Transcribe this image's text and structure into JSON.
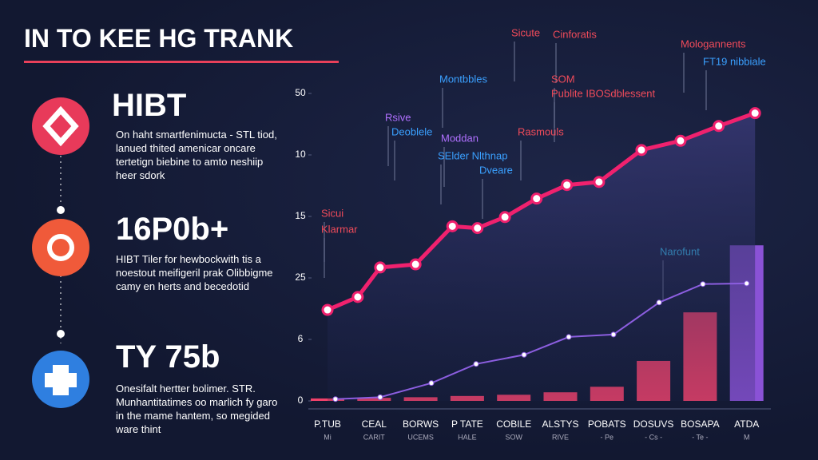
{
  "title": "IN TO KEE HG TRANK",
  "items": [
    {
      "heading": "HIBT",
      "text": "On haht smartfenimucta - STL tiod, lanued thited amenicar oncare tertetign biebine to amto neshiip heer sdork"
    },
    {
      "heading": "16P0b+",
      "text": "HIBT Tiler for hewbockwith tis a noestout meifigeril prak Olibbigme camy en herts and becedotid"
    },
    {
      "heading": "TY 75b",
      "text": "Onesifalt hertter bolimer. STR. Munhantitatimes oo marlich fy garo in the mame hantem, so megided ware thint"
    }
  ],
  "chart_data": {
    "type": "combo",
    "categories": [
      "P.TUB",
      "CEAL",
      "BORWS",
      "P TATE",
      "COBILE",
      "ALSTYS",
      "POBATS",
      "DOSUVS",
      "BOSAPA",
      "ATDA"
    ],
    "category_sublabels": [
      "Mi",
      "CARIT",
      "UCEMS",
      "HALE",
      "SOW",
      "RIVE",
      "- Pe",
      "- Cs -",
      "- Te -",
      "M"
    ],
    "ylim": [
      0,
      50
    ],
    "yticks": [
      0,
      {
        "value": 10,
        "label": "6"
      },
      {
        "value": 20,
        "label": "25"
      },
      {
        "value": 30,
        "label": "15"
      },
      {
        "value": 40,
        "label": "10"
      },
      {
        "value": 50,
        "label": "50"
      }
    ],
    "bars": {
      "color": "#f0416a",
      "last_color": "#8a52d6",
      "values": [
        0.4,
        0.5,
        0.6,
        0.8,
        1.0,
        1.4,
        2.3,
        6.5,
        14.4,
        25.3
      ]
    },
    "series": [
      {
        "color": "#f0216e",
        "x": [
          0,
          0.65,
          1.13,
          1.89,
          2.68,
          3.22,
          3.81,
          4.49,
          5.14,
          5.83,
          6.74,
          7.58,
          8.4,
          9.18
        ],
        "values": [
          14.8,
          16.9,
          21.7,
          22.2,
          28.4,
          28.1,
          29.9,
          32.9,
          35.1,
          35.6,
          40.8,
          42.3,
          44.7,
          46.8
        ]
      },
      {
        "color": "#8c5ee0",
        "x": [
          0.17,
          1.13,
          2.23,
          3.19,
          4.22,
          5.18,
          6.14,
          7.12,
          8.06,
          9.0
        ],
        "values": [
          0.3,
          0.6,
          2.9,
          6.0,
          7.5,
          10.4,
          10.8,
          16.0,
          19.0,
          19.1
        ]
      }
    ],
    "annotations": [
      {
        "text": "Sicute",
        "color": "#f04b5a"
      },
      {
        "text": "Cinforatis",
        "color": "#f04b5a"
      },
      {
        "text": "Mologannents",
        "color": "#f04b5a"
      },
      {
        "text": "FT19 nibbiale",
        "color": "#3aa0ff"
      },
      {
        "text": "Montbbles",
        "color": "#3aa0ff"
      },
      {
        "text": "SOM",
        "color": "#f04b5a"
      },
      {
        "text": "Publite IBOSdblessent",
        "color": "#f04b5a"
      },
      {
        "text": "Rsive",
        "color": "#b070ff"
      },
      {
        "text": "Deoblele",
        "color": "#3aa0ff"
      },
      {
        "text": "Moddan",
        "color": "#b070ff"
      },
      {
        "text": "SElder Nlthnap",
        "color": "#3aa0ff"
      },
      {
        "text": "Dveare",
        "color": "#3aa0ff"
      },
      {
        "text": "Rasmouls",
        "color": "#f04b5a"
      },
      {
        "text": "Sicui",
        "color": "#f04b5a"
      },
      {
        "text": "Klarmar",
        "color": "#f04b5a"
      },
      {
        "text": "Narofunt",
        "color": "#3ad0ff"
      }
    ]
  }
}
